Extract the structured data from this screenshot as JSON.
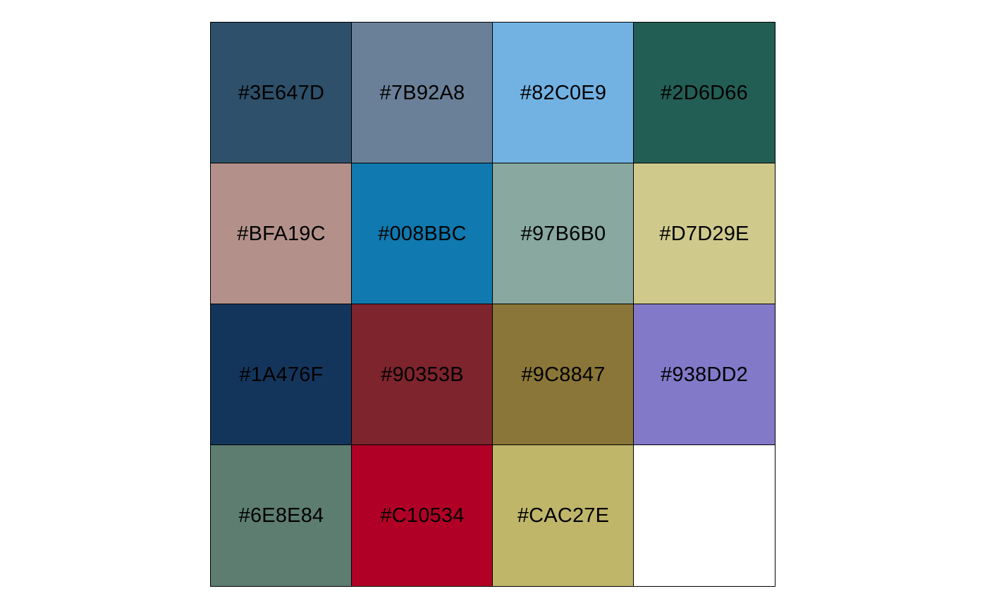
{
  "palette": {
    "swatches": [
      {
        "label": "#3E647D",
        "color": "#2E506A"
      },
      {
        "label": "#7B92A8",
        "color": "#6A8098"
      },
      {
        "label": "#82C0E9",
        "color": "#72B2E3"
      },
      {
        "label": "#2D6D66",
        "color": "#235E55"
      },
      {
        "label": "#BFA19C",
        "color": "#B3918A"
      },
      {
        "label": "#008BBC",
        "color": "#1079AF"
      },
      {
        "label": "#97B6B0",
        "color": "#88A8A0"
      },
      {
        "label": "#D7D29E",
        "color": "#CFCA8C"
      },
      {
        "label": "#1A476F",
        "color": "#14355B"
      },
      {
        "label": "#90353B",
        "color": "#7D242D"
      },
      {
        "label": "#9C8847",
        "color": "#8A7638"
      },
      {
        "label": "#938DD2",
        "color": "#8279C8"
      },
      {
        "label": "#6E8E84",
        "color": "#5D7D71"
      },
      {
        "label": "#C10534",
        "color": "#B10026"
      },
      {
        "label": "#CAC27E",
        "color": "#BFB66A"
      },
      {
        "label": "",
        "color": "#FFFFFF"
      }
    ]
  }
}
